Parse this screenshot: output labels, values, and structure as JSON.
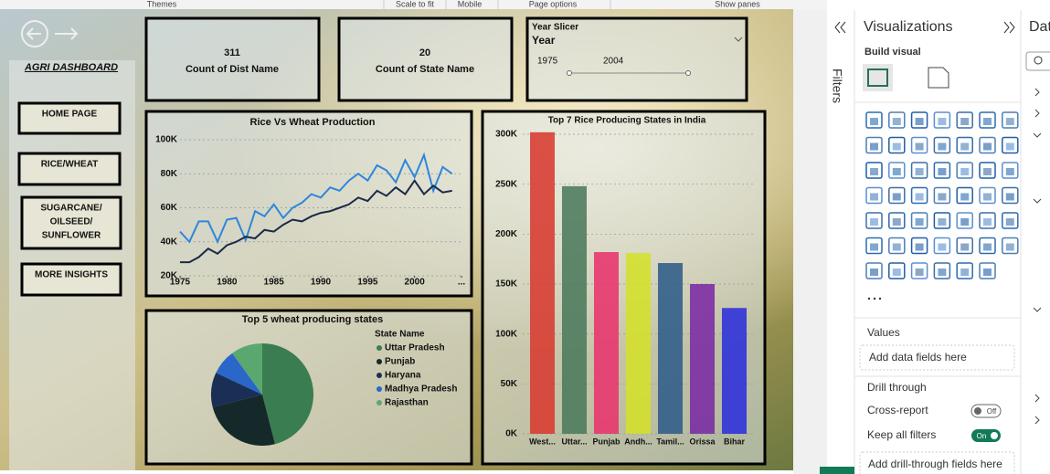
{
  "ribbon": [
    "Themes",
    "Scale to fit",
    "Mobile",
    "Page options",
    "Show panes"
  ],
  "nav": {
    "title": "AGRI DASHBOARD",
    "buttons": [
      [
        "HOME PAGE"
      ],
      [
        "RICE/WHEAT"
      ],
      [
        "SUGARCANE/",
        "OILSEED/",
        "SUNFLOWER"
      ],
      [
        "MORE INSIGHTS"
      ]
    ]
  },
  "cards": [
    {
      "value": 311,
      "label": "Count of Dist Name"
    },
    {
      "value": 20,
      "label": "Count of State Name"
    }
  ],
  "slicer": {
    "title": "Year Slicer",
    "field": "Year",
    "start": 1975,
    "end": 2004
  },
  "chart_data": [
    {
      "type": "line",
      "title": "Rice Vs Wheat Production",
      "x": [
        1975,
        1976,
        1977,
        1978,
        1979,
        1980,
        1981,
        1982,
        1983,
        1984,
        1985,
        1986,
        1987,
        1988,
        1989,
        1990,
        1991,
        1992,
        1993,
        1994,
        1995,
        1996,
        1997,
        1998,
        1999,
        2000,
        2001,
        2002,
        2003,
        2004
      ],
      "xlim": [
        1975,
        2005
      ],
      "xticks": [
        1975,
        1980,
        1985,
        1990,
        1995,
        2000,
        {
          "value": 2005,
          "label": "..."
        }
      ],
      "ylim": [
        20000,
        100000
      ],
      "yticks": [
        {
          "value": 20000,
          "label": "20K"
        },
        {
          "value": 40000,
          "label": "40K"
        },
        {
          "value": 60000,
          "label": "60K"
        },
        {
          "value": 80000,
          "label": "80K"
        },
        {
          "value": 100000,
          "label": "100K"
        }
      ],
      "grid": true,
      "series": [
        {
          "color": "#2e86de",
          "values": [
            46000,
            40000,
            52000,
            52000,
            40000,
            53000,
            54000,
            41000,
            58000,
            55000,
            62000,
            54000,
            60000,
            63000,
            68000,
            66000,
            72000,
            70000,
            76000,
            80000,
            76000,
            85000,
            82000,
            75000,
            88000,
            78000,
            91000,
            70000,
            84000,
            80000
          ]
        },
        {
          "color": "#1b2a48",
          "values": [
            28000,
            28000,
            31000,
            36000,
            33000,
            38000,
            40000,
            43000,
            42000,
            47000,
            46000,
            50000,
            53000,
            52000,
            55000,
            57000,
            58000,
            60000,
            62000,
            66000,
            64000,
            70000,
            67000,
            72000,
            68000,
            76000,
            68000,
            73000,
            69000,
            70000
          ]
        }
      ]
    },
    {
      "type": "bar",
      "title": "Top 7 Rice Producing States in India",
      "categories": [
        "West...",
        "Uttar...",
        "Punjab",
        "Andh...",
        "Tamil...",
        "Orissa",
        "Bihar"
      ],
      "values": [
        302000,
        248000,
        182000,
        181000,
        171000,
        150000,
        126000
      ],
      "colors": [
        "#d83a30",
        "#4b7a5c",
        "#e8336d",
        "#d4e02a",
        "#2f5c8a",
        "#7a2aa4",
        "#2c2fdc"
      ],
      "ylim": [
        0,
        300000
      ],
      "yticks": [
        {
          "value": 0,
          "label": "0K"
        },
        {
          "value": 50000,
          "label": "50K"
        },
        {
          "value": 100000,
          "label": "100K"
        },
        {
          "value": 150000,
          "label": "150K"
        },
        {
          "value": 200000,
          "label": "200K"
        },
        {
          "value": 250000,
          "label": "250K"
        },
        {
          "value": 300000,
          "label": "300K"
        }
      ],
      "grid": true
    },
    {
      "type": "pie",
      "title": "Top 5 wheat producing states",
      "legend_title": "State Name",
      "categories": [
        "Uttar Pradesh",
        "Punjab",
        "Haryana",
        "Madhya Pradesh",
        "Rajasthan"
      ],
      "values": [
        46,
        25,
        11,
        8,
        10
      ],
      "colors": [
        "#3a7d50",
        "#15292a",
        "#1a2f55",
        "#2a67c8",
        "#5aa870"
      ]
    }
  ],
  "panes": {
    "filters": "Filters",
    "visualizations": "Visualizations",
    "build_visual": "Build visual",
    "values_label": "Values",
    "values_placeholder": "Add data fields here",
    "drill_title": "Drill through",
    "cross_report": "Cross-report",
    "cross_state": "Off",
    "keep_filters": "Keep all filters",
    "keep_state": "On",
    "drill_placeholder": "Add drill-through fields here",
    "data_pane": "Dat"
  }
}
